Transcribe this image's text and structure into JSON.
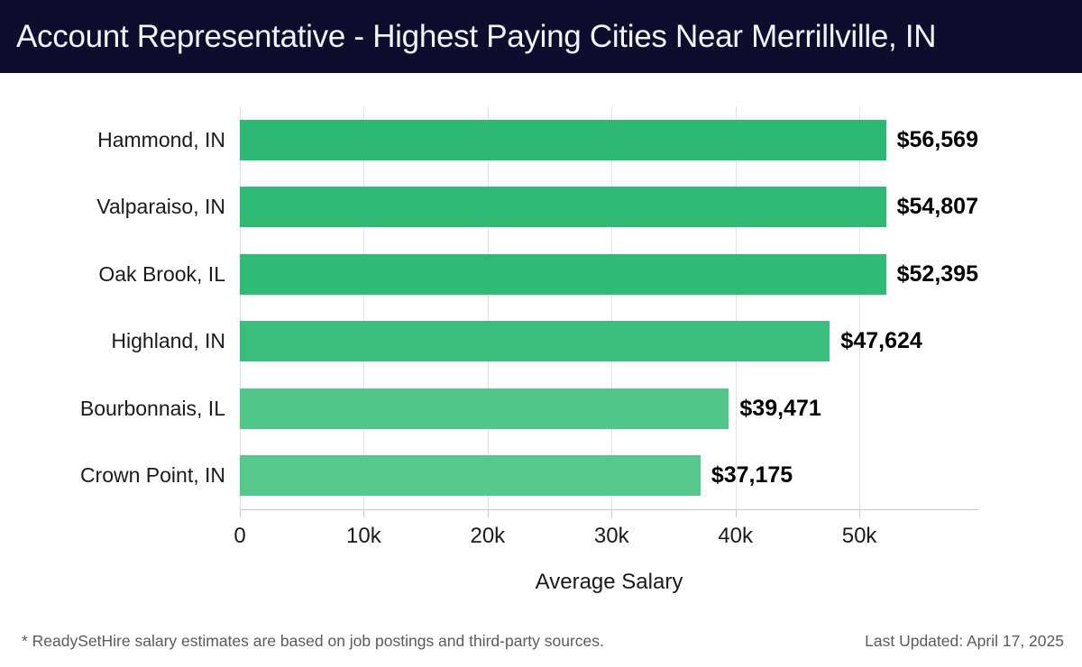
{
  "header": {
    "title": "Account Representative - Highest Paying Cities Near Merrillville, IN"
  },
  "chart_data": {
    "type": "bar",
    "orientation": "horizontal",
    "title": "Account Representative - Highest Paying Cities Near Merrillville, IN",
    "categories": [
      "Hammond, IN",
      "Valparaiso, IN",
      "Oak Brook, IL",
      "Highland, IN",
      "Bourbonnais, IL",
      "Crown Point, IN"
    ],
    "values": [
      56569,
      54807,
      52395,
      47624,
      39471,
      37175
    ],
    "value_labels": [
      "$56,569",
      "$54,807",
      "$52,395",
      "$47,624",
      "$39,471",
      "$37,175"
    ],
    "bar_colors": [
      "#2db873",
      "#2fb975",
      "#31ba76",
      "#3bbd7c",
      "#50c688",
      "#55c98c"
    ],
    "xlabel": "Average Salary",
    "ylabel": "",
    "xlim": [
      0,
      59600
    ],
    "xticks": [
      {
        "value": 0,
        "label": "0"
      },
      {
        "value": 10000,
        "label": "10k"
      },
      {
        "value": 20000,
        "label": "20k"
      },
      {
        "value": 30000,
        "label": "30k"
      },
      {
        "value": 40000,
        "label": "40k"
      },
      {
        "value": 50000,
        "label": "50k"
      }
    ],
    "grid": "vertical",
    "legend": "none"
  },
  "footer": {
    "disclaimer": "* ReadySetHire salary estimates are based on job postings and third-party sources.",
    "last_updated": "Last Updated: April 17, 2025"
  },
  "colors": {
    "header_bg": "#0f0d2e",
    "header_text": "#f4f4f8",
    "grid": "#e4e4e8",
    "axis": "#c9c9cf",
    "label_text": "#1a1a1a",
    "value_text": "#000000",
    "footer_text": "#5a5a5a"
  }
}
